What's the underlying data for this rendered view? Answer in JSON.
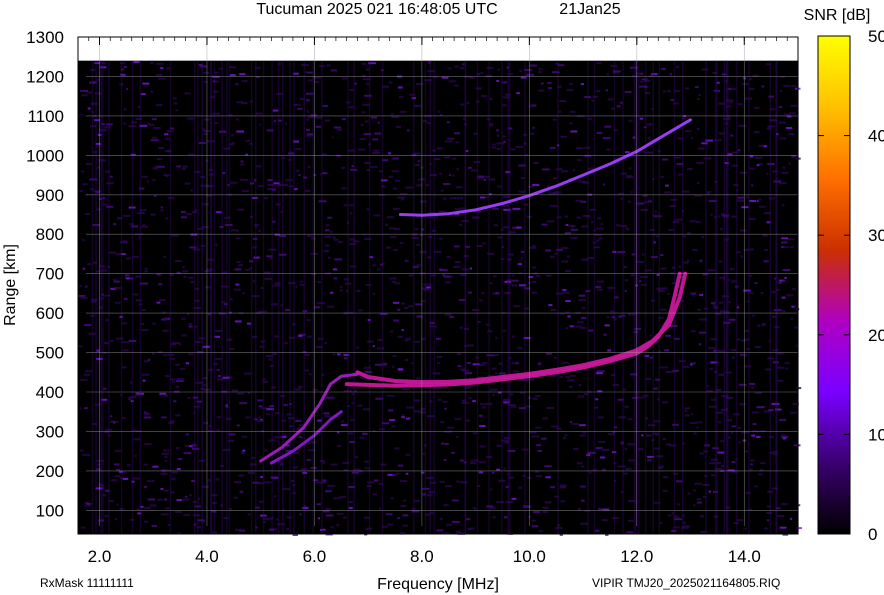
{
  "chart_data": {
    "type": "heatmap",
    "title": "Tucuman 2025 021 16:48:05 UTC",
    "date_label": "21Jan25",
    "xlabel": "Frequency [MHz]",
    "ylabel": "Range [km]",
    "xlim": [
      1.6,
      15.0
    ],
    "ylim": [
      40,
      1300
    ],
    "x_ticks": [
      "2.0",
      "4.0",
      "6.0",
      "8.0",
      "10.0",
      "12.0",
      "14.0"
    ],
    "x_tick_values": [
      2.0,
      4.0,
      6.0,
      8.0,
      10.0,
      12.0,
      14.0
    ],
    "y_ticks": [
      "100",
      "200",
      "300",
      "400",
      "500",
      "600",
      "700",
      "800",
      "900",
      "1000",
      "1100",
      "1200",
      "1300"
    ],
    "y_tick_values": [
      100,
      200,
      300,
      400,
      500,
      600,
      700,
      800,
      900,
      1000,
      1100,
      1200,
      1300
    ],
    "grid": true,
    "data_top_km": 1240,
    "colorbar": {
      "label": "SNR [dB]",
      "ticks": [
        "0",
        "10",
        "20",
        "30",
        "40",
        "50"
      ],
      "tick_values": [
        0,
        10,
        20,
        30,
        40,
        50
      ],
      "range": [
        0,
        50
      ],
      "colors": [
        "#000000",
        "#3a0070",
        "#7a00ff",
        "#b000c0",
        "#cc3000",
        "#ff7000",
        "#ffc000",
        "#ffff00"
      ]
    },
    "series": [
      {
        "name": "",
        "color": "#a040ff",
        "points": [
          [
            7.6,
            850
          ],
          [
            8.0,
            848
          ],
          [
            8.5,
            852
          ],
          [
            9.0,
            862
          ],
          [
            9.5,
            878
          ],
          [
            10.0,
            898
          ],
          [
            10.5,
            922
          ],
          [
            11.0,
            950
          ],
          [
            11.5,
            978
          ],
          [
            12.0,
            1010
          ],
          [
            12.5,
            1050
          ],
          [
            13.0,
            1090
          ]
        ]
      },
      {
        "name": "",
        "color": "#c8189a",
        "points": [
          [
            6.8,
            450
          ],
          [
            7.0,
            438
          ],
          [
            7.5,
            428
          ],
          [
            8.0,
            425
          ],
          [
            8.5,
            426
          ],
          [
            9.0,
            430
          ],
          [
            9.5,
            438
          ],
          [
            10.0,
            446
          ],
          [
            10.5,
            456
          ],
          [
            11.0,
            468
          ],
          [
            11.5,
            484
          ],
          [
            12.0,
            506
          ],
          [
            12.3,
            530
          ],
          [
            12.6,
            570
          ],
          [
            12.8,
            640
          ],
          [
            12.9,
            700
          ]
        ]
      },
      {
        "name": "",
        "color": "#c8189a",
        "points": [
          [
            6.6,
            420
          ],
          [
            7.0,
            418
          ],
          [
            7.5,
            416
          ],
          [
            8.0,
            417
          ],
          [
            8.5,
            419
          ],
          [
            9.0,
            424
          ],
          [
            9.5,
            432
          ],
          [
            10.0,
            440
          ],
          [
            10.5,
            450
          ],
          [
            11.0,
            462
          ],
          [
            11.5,
            478
          ],
          [
            12.0,
            498
          ],
          [
            12.2,
            515
          ],
          [
            12.4,
            540
          ],
          [
            12.6,
            585
          ],
          [
            12.7,
            640
          ],
          [
            12.8,
            700
          ]
        ]
      },
      {
        "name": "",
        "color": "#a020c0",
        "points": [
          [
            5.0,
            225
          ],
          [
            5.4,
            260
          ],
          [
            5.8,
            310
          ],
          [
            6.1,
            370
          ],
          [
            6.3,
            420
          ],
          [
            6.5,
            440
          ],
          [
            6.8,
            445
          ]
        ]
      },
      {
        "name": "",
        "color": "#8a18c8",
        "points": [
          [
            5.2,
            220
          ],
          [
            5.6,
            250
          ],
          [
            6.0,
            290
          ],
          [
            6.3,
            330
          ],
          [
            6.5,
            350
          ]
        ]
      }
    ],
    "annotations": [
      {
        "text": "RxMask 11111111"
      },
      {
        "text": "VIPIR  TMJ20_2025021164805.RIQ"
      }
    ]
  }
}
